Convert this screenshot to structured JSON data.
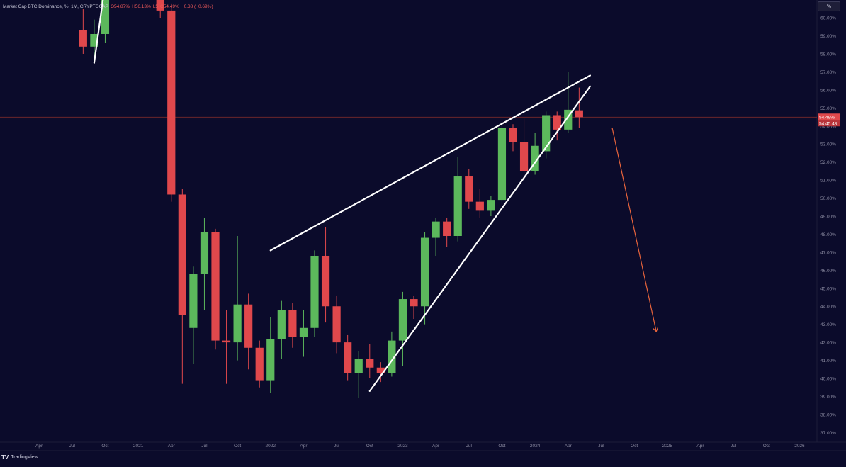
{
  "header": {
    "symbol": "Market Cap BTC Dominance, %, 1M, CRYPTOCAP",
    "open": "O54.87%",
    "high": "H56.13%",
    "low": "L5",
    "close": "C54.49%",
    "change": "−0.38 (−0.69%)"
  },
  "interval_label": "%",
  "brand": {
    "logo": "TV",
    "name": "TradingView"
  },
  "price_badges": {
    "last": "54.49%",
    "countdown": "54:45:48"
  },
  "colors": {
    "up": "#5cb85c",
    "down": "#e0484c",
    "arrow": "#e8643c",
    "background": "#0b0b2b",
    "trendline": "#ffffff",
    "last_price_line": "#7a2a2a"
  },
  "chart_data": {
    "type": "candlestick",
    "y_axis": {
      "ticks": [
        "60.00%",
        "59.00%",
        "58.00%",
        "57.00%",
        "56.00%",
        "55.00%",
        "54.00%",
        "53.00%",
        "52.00%",
        "51.00%",
        "50.00%",
        "49.00%",
        "48.00%",
        "47.00%",
        "46.00%",
        "45.00%",
        "44.00%",
        "43.00%",
        "42.00%",
        "41.00%",
        "40.00%",
        "39.00%",
        "38.00%",
        "37.00%"
      ],
      "range": [
        36.7,
        60.2
      ]
    },
    "x_axis": {
      "ticks": [
        "Apr",
        "Jul",
        "Oct",
        "2021",
        "Apr",
        "Jul",
        "Oct",
        "2022",
        "Apr",
        "Jul",
        "Oct",
        "2023",
        "Apr",
        "Jul",
        "Oct",
        "2024",
        "Apr",
        "Jul",
        "Oct",
        "2025",
        "Apr",
        "Jul",
        "Oct",
        "2026"
      ],
      "range": [
        "2020-02",
        "2026-02"
      ]
    },
    "grid": false,
    "last_price": 54.49,
    "candles": [
      {
        "date": "2020-08",
        "open": 59.3,
        "high": 60.5,
        "low": 58.0,
        "close": 58.4
      },
      {
        "date": "2020-09",
        "open": 58.4,
        "high": 59.9,
        "low": 57.8,
        "close": 59.1
      },
      {
        "date": "2020-10",
        "open": 59.1,
        "high": 62.0,
        "low": 58.6,
        "close": 61.9
      },
      {
        "date": "2021-03",
        "open": 62.5,
        "high": 63.0,
        "low": 60.0,
        "close": 60.4
      },
      {
        "date": "2021-04",
        "open": 60.4,
        "high": 60.8,
        "low": 49.8,
        "close": 50.2
      },
      {
        "date": "2021-05",
        "open": 50.2,
        "high": 50.5,
        "low": 39.7,
        "close": 43.5
      },
      {
        "date": "2021-06",
        "open": 42.8,
        "high": 46.2,
        "low": 40.8,
        "close": 45.8
      },
      {
        "date": "2021-07",
        "open": 45.8,
        "high": 48.9,
        "low": 43.8,
        "close": 48.1
      },
      {
        "date": "2021-08",
        "open": 48.1,
        "high": 48.3,
        "low": 41.6,
        "close": 42.1
      },
      {
        "date": "2021-09",
        "open": 42.1,
        "high": 43.8,
        "low": 39.7,
        "close": 42.0
      },
      {
        "date": "2021-10",
        "open": 42.0,
        "high": 47.9,
        "low": 41.0,
        "close": 44.1
      },
      {
        "date": "2021-11",
        "open": 44.1,
        "high": 44.7,
        "low": 40.5,
        "close": 41.7
      },
      {
        "date": "2021-12",
        "open": 41.7,
        "high": 42.1,
        "low": 39.5,
        "close": 39.9
      },
      {
        "date": "2022-01",
        "open": 39.9,
        "high": 43.4,
        "low": 39.2,
        "close": 42.2
      },
      {
        "date": "2022-02",
        "open": 42.2,
        "high": 44.3,
        "low": 41.1,
        "close": 43.8
      },
      {
        "date": "2022-03",
        "open": 43.8,
        "high": 44.2,
        "low": 41.7,
        "close": 42.3
      },
      {
        "date": "2022-04",
        "open": 42.3,
        "high": 43.8,
        "low": 41.2,
        "close": 42.8
      },
      {
        "date": "2022-05",
        "open": 42.8,
        "high": 47.1,
        "low": 42.3,
        "close": 46.8
      },
      {
        "date": "2022-06",
        "open": 46.8,
        "high": 48.4,
        "low": 43.1,
        "close": 44.0
      },
      {
        "date": "2022-07",
        "open": 44.0,
        "high": 44.6,
        "low": 41.4,
        "close": 42.0
      },
      {
        "date": "2022-08",
        "open": 42.0,
        "high": 42.4,
        "low": 39.9,
        "close": 40.3
      },
      {
        "date": "2022-09",
        "open": 40.3,
        "high": 41.5,
        "low": 38.9,
        "close": 41.1
      },
      {
        "date": "2022-10",
        "open": 41.1,
        "high": 41.9,
        "low": 40.0,
        "close": 40.6
      },
      {
        "date": "2022-11",
        "open": 40.6,
        "high": 40.9,
        "low": 39.8,
        "close": 40.3
      },
      {
        "date": "2022-12",
        "open": 40.3,
        "high": 42.6,
        "low": 40.1,
        "close": 42.1
      },
      {
        "date": "2023-01",
        "open": 42.1,
        "high": 44.8,
        "low": 40.7,
        "close": 44.4
      },
      {
        "date": "2023-02",
        "open": 44.4,
        "high": 44.6,
        "low": 43.3,
        "close": 44.0
      },
      {
        "date": "2023-03",
        "open": 44.0,
        "high": 48.1,
        "low": 43.0,
        "close": 47.8
      },
      {
        "date": "2023-04",
        "open": 47.8,
        "high": 48.9,
        "low": 46.8,
        "close": 48.7
      },
      {
        "date": "2023-05",
        "open": 48.7,
        "high": 48.9,
        "low": 47.3,
        "close": 47.9
      },
      {
        "date": "2023-06",
        "open": 47.9,
        "high": 52.3,
        "low": 47.6,
        "close": 51.2
      },
      {
        "date": "2023-07",
        "open": 51.2,
        "high": 51.6,
        "low": 49.4,
        "close": 49.8
      },
      {
        "date": "2023-08",
        "open": 49.8,
        "high": 50.5,
        "low": 48.9,
        "close": 49.3
      },
      {
        "date": "2023-09",
        "open": 49.3,
        "high": 50.1,
        "low": 49.0,
        "close": 49.9
      },
      {
        "date": "2023-10",
        "open": 49.9,
        "high": 54.2,
        "low": 49.7,
        "close": 53.9
      },
      {
        "date": "2023-11",
        "open": 53.9,
        "high": 54.1,
        "low": 52.6,
        "close": 53.1
      },
      {
        "date": "2023-12",
        "open": 53.1,
        "high": 54.4,
        "low": 51.3,
        "close": 51.5
      },
      {
        "date": "2024-01",
        "open": 51.5,
        "high": 53.6,
        "low": 51.3,
        "close": 52.9
      },
      {
        "date": "2024-02",
        "open": 52.6,
        "high": 54.8,
        "low": 52.2,
        "close": 54.6
      },
      {
        "date": "2024-03",
        "open": 54.6,
        "high": 54.8,
        "low": 53.2,
        "close": 53.8
      },
      {
        "date": "2024-04",
        "open": 53.8,
        "high": 57.0,
        "low": 53.6,
        "close": 54.9
      },
      {
        "date": "2024-05",
        "open": 54.87,
        "high": 56.13,
        "low": 53.9,
        "close": 54.49
      }
    ],
    "annotations": [
      {
        "type": "trendline",
        "from": {
          "date": "2022-01",
          "value": 47.1
        },
        "to": {
          "date": "2024-06",
          "value": 56.8
        }
      },
      {
        "type": "trendline",
        "from": {
          "date": "2022-10",
          "value": 39.3
        },
        "to": {
          "date": "2024-06",
          "value": 56.2
        }
      },
      {
        "type": "trendline",
        "from": {
          "date": "2020-09",
          "value": 57.5
        },
        "to": {
          "date": "2020-10",
          "value": 61.9
        }
      },
      {
        "type": "arrow",
        "from": {
          "date": "2024-08",
          "value": 53.9
        },
        "to": {
          "date": "2024-12",
          "value": 42.6
        }
      }
    ]
  }
}
